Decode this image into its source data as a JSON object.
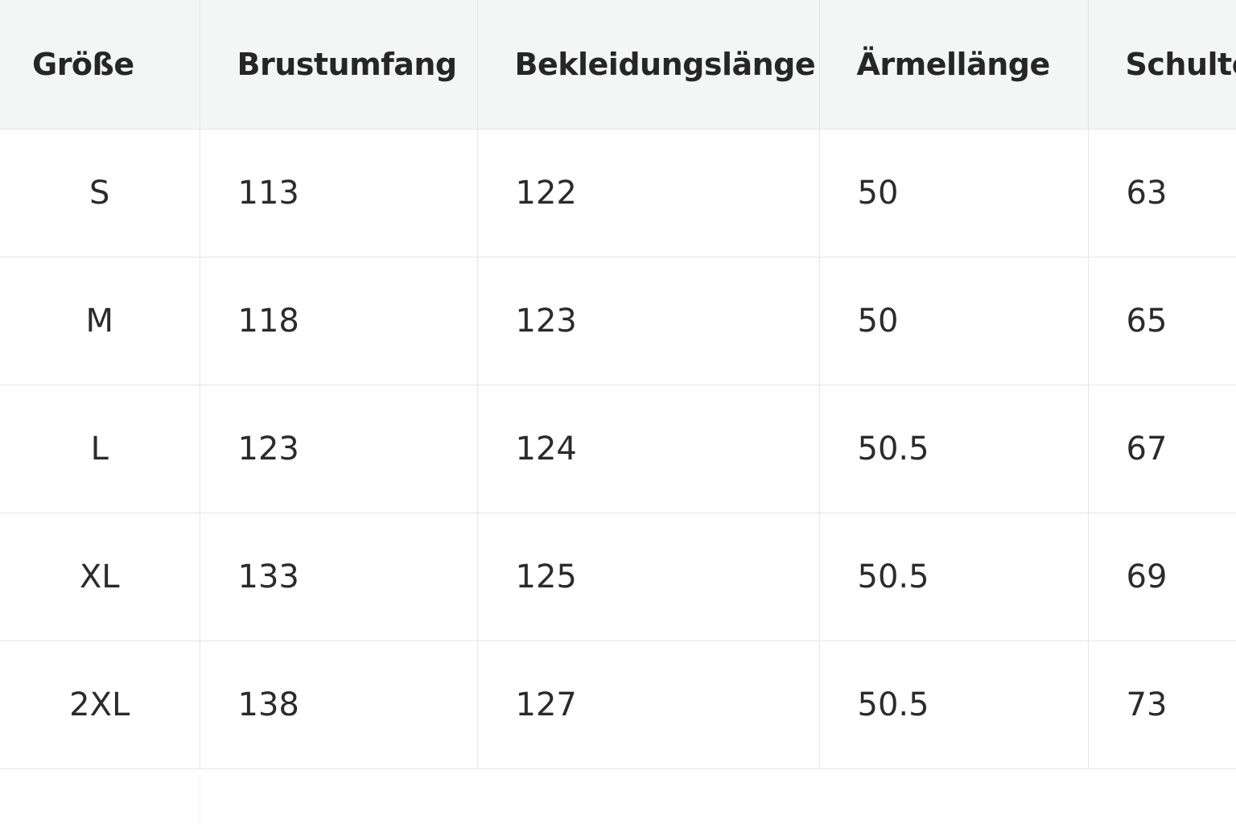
{
  "table": {
    "header": [
      "Größe",
      "Brustumfang",
      "Bekleidungslänge",
      "Ärmellänge",
      "Schulterbreite"
    ],
    "rows": [
      [
        "S",
        113,
        122,
        50,
        63
      ],
      [
        "M",
        118,
        123,
        50,
        65
      ],
      [
        "L",
        123,
        124,
        50.5,
        67
      ],
      [
        "XL",
        133,
        125,
        50.5,
        69
      ],
      [
        "2XL",
        138,
        127,
        50.5,
        73
      ]
    ]
  }
}
